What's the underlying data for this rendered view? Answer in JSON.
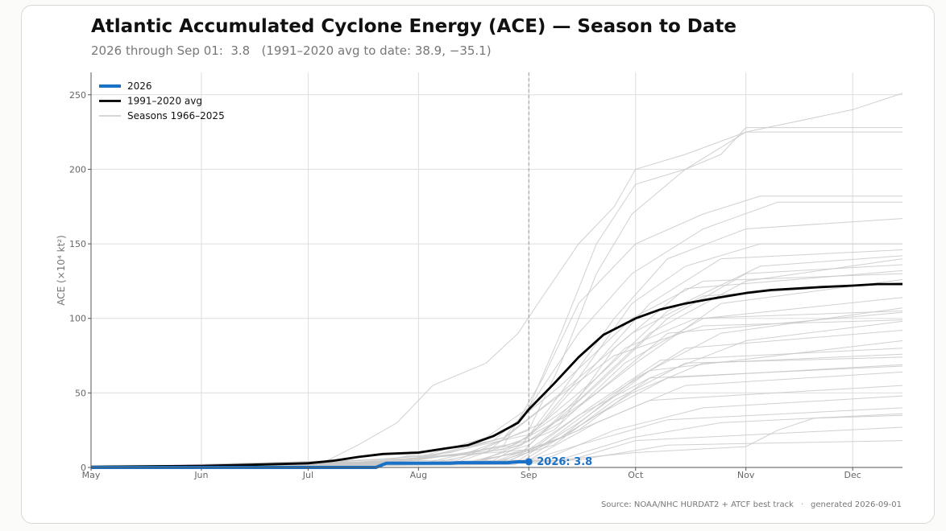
{
  "title": "Atlantic Accumulated Cyclone Energy (ACE) — Season to Date",
  "subtitle": "2026 through Sep 01:  3.8   (1991–2020 avg to date: 38.9, −35.1)",
  "footer": {
    "source": "Source: NOAA/NHC HURDAT2 + ATCF best track",
    "separator": "·",
    "generated": "generated 2026-09-01"
  },
  "colors": {
    "current": "#1a72c8",
    "average": "#000000",
    "history": "#c8c8c8",
    "grid": "#dddddd",
    "today": "#999999"
  },
  "chart_data": {
    "type": "line",
    "ylabel": "ACE (×10⁴ kt²)",
    "xlim": [
      "2026-05-01",
      "2026-12-15"
    ],
    "ylim": [
      0,
      265
    ],
    "x_ticks": [
      {
        "date": "2026-05-01",
        "label": "May"
      },
      {
        "date": "2026-06-01",
        "label": "Jun"
      },
      {
        "date": "2026-07-01",
        "label": "Jul"
      },
      {
        "date": "2026-08-01",
        "label": "Aug"
      },
      {
        "date": "2026-09-01",
        "label": "Sep"
      },
      {
        "date": "2026-10-01",
        "label": "Oct"
      },
      {
        "date": "2026-11-01",
        "label": "Nov"
      },
      {
        "date": "2026-12-01",
        "label": "Dec"
      }
    ],
    "y_ticks": [
      0,
      50,
      100,
      150,
      200,
      250
    ],
    "grid": true,
    "legend_position": "top-left",
    "today": "2026-09-01",
    "annotation": "2026: 3.8",
    "legend": [
      {
        "label": "2026",
        "key": "current"
      },
      {
        "label": "1991–2020 avg",
        "key": "average"
      },
      {
        "label": "Seasons 1966–2025",
        "key": "history"
      }
    ],
    "series_2026": {
      "name": "2026",
      "x": [
        "2026-05-01",
        "2026-07-20",
        "2026-07-23",
        "2026-08-10",
        "2026-08-12",
        "2026-08-26",
        "2026-08-29",
        "2026-09-01"
      ],
      "y": [
        0,
        0,
        2.8,
        2.8,
        3.2,
        3.2,
        3.8,
        3.8
      ]
    },
    "series_avg": {
      "name": "1991–2020 avg",
      "x": [
        "2026-05-01",
        "2026-06-01",
        "2026-06-15",
        "2026-07-01",
        "2026-07-08",
        "2026-07-15",
        "2026-07-22",
        "2026-08-01",
        "2026-08-08",
        "2026-08-15",
        "2026-08-22",
        "2026-08-29",
        "2026-09-01",
        "2026-09-08",
        "2026-09-15",
        "2026-09-22",
        "2026-10-01",
        "2026-10-08",
        "2026-10-15",
        "2026-10-22",
        "2026-11-01",
        "2026-11-08",
        "2026-11-15",
        "2026-11-22",
        "2026-12-01",
        "2026-12-08",
        "2026-12-15"
      ],
      "y": [
        0.5,
        1,
        1.8,
        2.8,
        4.5,
        7,
        9,
        10,
        12.5,
        15,
        21,
        30,
        38.9,
        56,
        74,
        89,
        100,
        106,
        110,
        113,
        117,
        119,
        120,
        121,
        122,
        123,
        123
      ]
    },
    "series_history": [
      {
        "x": [
          "2026-05-01",
          "2026-07-05",
          "2026-07-15",
          "2026-07-26",
          "2026-08-05",
          "2026-08-20",
          "2026-08-29",
          "2026-09-05",
          "2026-09-15",
          "2026-09-25",
          "2026-10-01",
          "2026-10-15",
          "2026-11-01",
          "2026-12-01",
          "2026-12-15"
        ],
        "y": [
          0,
          3,
          15,
          30,
          55,
          70,
          90,
          115,
          150,
          175,
          200,
          210,
          225,
          240,
          251
        ]
      },
      {
        "x": [
          "2026-05-01",
          "2026-07-20",
          "2026-08-10",
          "2026-08-25",
          "2026-09-01",
          "2026-09-10",
          "2026-09-20",
          "2026-10-01",
          "2026-10-15",
          "2026-10-25",
          "2026-11-01",
          "2026-12-15"
        ],
        "y": [
          0,
          5,
          10,
          20,
          40,
          90,
          150,
          190,
          200,
          210,
          228,
          228
        ]
      },
      {
        "x": [
          "2026-05-01",
          "2026-07-25",
          "2026-08-15",
          "2026-09-01",
          "2026-09-10",
          "2026-09-20",
          "2026-09-30",
          "2026-10-15",
          "2026-11-01",
          "2026-12-15"
        ],
        "y": [
          0,
          3,
          10,
          25,
          70,
          130,
          170,
          200,
          225,
          225
        ]
      },
      {
        "x": [
          "2026-05-01",
          "2026-08-01",
          "2026-08-25",
          "2026-09-05",
          "2026-09-15",
          "2026-10-01",
          "2026-10-20",
          "2026-11-05",
          "2026-12-15"
        ],
        "y": [
          0,
          2,
          15,
          60,
          110,
          150,
          170,
          182,
          182
        ]
      },
      {
        "x": [
          "2026-05-01",
          "2026-07-28",
          "2026-08-20",
          "2026-09-01",
          "2026-09-15",
          "2026-09-30",
          "2026-10-20",
          "2026-11-10",
          "2026-12-15"
        ],
        "y": [
          0,
          4,
          20,
          40,
          90,
          130,
          160,
          178,
          178
        ]
      },
      {
        "x": [
          "2026-05-01",
          "2026-08-05",
          "2026-08-30",
          "2026-09-10",
          "2026-09-25",
          "2026-10-10",
          "2026-11-01",
          "2026-12-15"
        ],
        "y": [
          0,
          3,
          15,
          50,
          100,
          140,
          160,
          167
        ]
      },
      {
        "x": [
          "2026-05-01",
          "2026-08-10",
          "2026-09-01",
          "2026-09-15",
          "2026-09-30",
          "2026-10-15",
          "2026-11-05",
          "2026-12-15"
        ],
        "y": [
          0,
          2,
          20,
          60,
          110,
          135,
          150,
          150
        ]
      },
      {
        "x": [
          "2026-05-01",
          "2026-08-12",
          "2026-09-05",
          "2026-09-20",
          "2026-10-05",
          "2026-10-25",
          "2026-12-15"
        ],
        "y": [
          0,
          5,
          30,
          70,
          110,
          140,
          146
        ]
      },
      {
        "x": [
          "2026-05-01",
          "2026-08-15",
          "2026-09-01",
          "2026-09-20",
          "2026-10-10",
          "2026-11-01",
          "2026-12-15"
        ],
        "y": [
          0,
          3,
          15,
          55,
          100,
          130,
          136
        ]
      },
      {
        "x": [
          "2026-05-01",
          "2026-08-20",
          "2026-09-10",
          "2026-09-25",
          "2026-10-15",
          "2026-12-15"
        ],
        "y": [
          0,
          2,
          30,
          80,
          120,
          132
        ]
      },
      {
        "x": [
          "2026-05-01",
          "2026-08-01",
          "2026-08-25",
          "2026-09-10",
          "2026-09-30",
          "2026-10-20",
          "2026-12-15"
        ],
        "y": [
          0,
          6,
          20,
          50,
          90,
          115,
          124
        ]
      },
      {
        "x": [
          "2026-05-01",
          "2026-08-18",
          "2026-09-08",
          "2026-09-28",
          "2026-10-20",
          "2026-12-15"
        ],
        "y": [
          0,
          4,
          25,
          70,
          100,
          114
        ]
      },
      {
        "x": [
          "2026-05-01",
          "2026-08-22",
          "2026-09-10",
          "2026-10-01",
          "2026-10-25",
          "2026-12-15"
        ],
        "y": [
          0,
          2,
          20,
          60,
          90,
          107
        ]
      },
      {
        "x": [
          "2026-05-01",
          "2026-08-25",
          "2026-09-15",
          "2026-10-05",
          "2026-11-01",
          "2026-12-15"
        ],
        "y": [
          0,
          3,
          25,
          60,
          85,
          98
        ]
      },
      {
        "x": [
          "2026-05-01",
          "2026-08-15",
          "2026-09-05",
          "2026-09-25",
          "2026-10-15",
          "2026-12-15"
        ],
        "y": [
          0,
          2,
          15,
          50,
          80,
          92
        ]
      },
      {
        "x": [
          "2026-05-01",
          "2026-08-28",
          "2026-09-15",
          "2026-10-05",
          "2026-12-15"
        ],
        "y": [
          0,
          3,
          30,
          65,
          85
        ]
      },
      {
        "x": [
          "2026-05-01",
          "2026-08-20",
          "2026-09-10",
          "2026-09-30",
          "2026-10-20",
          "2026-12-15"
        ],
        "y": [
          0,
          2,
          20,
          50,
          70,
          76
        ]
      },
      {
        "x": [
          "2026-05-01",
          "2026-08-30",
          "2026-09-20",
          "2026-10-10",
          "2026-12-15"
        ],
        "y": [
          0,
          4,
          35,
          60,
          69
        ]
      },
      {
        "x": [
          "2026-05-01",
          "2026-09-01",
          "2026-09-20",
          "2026-10-15",
          "2026-12-15"
        ],
        "y": [
          0,
          5,
          30,
          55,
          64
        ]
      },
      {
        "x": [
          "2026-05-01",
          "2026-08-25",
          "2026-09-15",
          "2026-10-05",
          "2026-12-15"
        ],
        "y": [
          0,
          3,
          25,
          45,
          55
        ]
      },
      {
        "x": [
          "2026-05-01",
          "2026-09-05",
          "2026-09-25",
          "2026-10-20",
          "2026-12-15"
        ],
        "y": [
          0,
          5,
          25,
          40,
          48
        ]
      },
      {
        "x": [
          "2026-05-01",
          "2026-08-28",
          "2026-09-15",
          "2026-10-10",
          "2026-12-15"
        ],
        "y": [
          0,
          2,
          15,
          32,
          40
        ]
      },
      {
        "x": [
          "2026-05-01",
          "2026-09-08",
          "2026-09-30",
          "2026-10-25",
          "2026-12-15"
        ],
        "y": [
          0,
          4,
          20,
          30,
          36
        ]
      },
      {
        "x": [
          "2026-05-01",
          "2026-09-10",
          "2026-10-01",
          "2026-12-15"
        ],
        "y": [
          0,
          3,
          18,
          27
        ]
      },
      {
        "x": [
          "2026-05-01",
          "2026-09-15",
          "2026-10-10",
          "2026-12-15"
        ],
        "y": [
          0,
          5,
          15,
          18
        ]
      },
      {
        "x": [
          "2026-05-01",
          "2026-09-05",
          "2026-10-01",
          "2026-11-01",
          "2026-11-10",
          "2026-11-20",
          "2026-12-15"
        ],
        "y": [
          0,
          4,
          10,
          14,
          25,
          33,
          35
        ]
      },
      {
        "x": [
          "2026-05-01",
          "2026-07-10",
          "2026-08-01",
          "2026-09-01",
          "2026-09-15",
          "2026-10-05",
          "2026-12-15"
        ],
        "y": [
          0,
          3,
          6,
          12,
          35,
          60,
          68
        ]
      },
      {
        "x": [
          "2026-05-01",
          "2026-07-15",
          "2026-08-10",
          "2026-09-01",
          "2026-09-20",
          "2026-10-10",
          "2026-12-15"
        ],
        "y": [
          0,
          2,
          8,
          18,
          50,
          90,
          104
        ]
      },
      {
        "x": [
          "2026-05-01",
          "2026-06-15",
          "2026-07-15",
          "2026-08-20",
          "2026-09-05",
          "2026-09-25",
          "2026-10-20",
          "2026-12-15"
        ],
        "y": [
          0,
          1,
          3,
          10,
          40,
          75,
          95,
          99
        ]
      },
      {
        "x": [
          "2026-05-01",
          "2026-06-20",
          "2026-07-20",
          "2026-08-25",
          "2026-09-12",
          "2026-10-01",
          "2026-10-25",
          "2026-12-15"
        ],
        "y": [
          0,
          2,
          4,
          12,
          35,
          70,
          110,
          126
        ]
      },
      {
        "x": [
          "2026-05-01",
          "2026-07-01",
          "2026-08-01",
          "2026-08-28",
          "2026-09-15",
          "2026-10-05",
          "2026-11-01",
          "2026-12-15"
        ],
        "y": [
          0,
          1,
          5,
          15,
          45,
          90,
          125,
          140
        ]
      },
      {
        "x": [
          "2026-05-01",
          "2026-07-05",
          "2026-08-05",
          "2026-09-01",
          "2026-09-20",
          "2026-10-10",
          "2026-11-05",
          "2026-12-15"
        ],
        "y": [
          0,
          3,
          8,
          22,
          60,
          105,
          135,
          142
        ]
      },
      {
        "x": [
          "2026-05-01",
          "2026-06-25",
          "2026-07-25",
          "2026-08-22",
          "2026-09-10",
          "2026-09-30",
          "2026-10-20",
          "2026-12-15"
        ],
        "y": [
          0,
          2,
          6,
          18,
          55,
          100,
          125,
          130
        ]
      },
      {
        "x": [
          "2026-05-01",
          "2026-08-10",
          "2026-08-30",
          "2026-09-12",
          "2026-09-28",
          "2026-10-18",
          "2026-12-15"
        ],
        "y": [
          0,
          2,
          10,
          40,
          80,
          100,
          105
        ]
      },
      {
        "x": [
          "2026-05-01",
          "2026-08-15",
          "2026-09-02",
          "2026-09-18",
          "2026-10-08",
          "2026-12-15"
        ],
        "y": [
          0,
          3,
          12,
          40,
          72,
          80
        ]
      },
      {
        "x": [
          "2026-05-01",
          "2026-08-20",
          "2026-09-08",
          "2026-09-25",
          "2026-10-15",
          "2026-12-15"
        ],
        "y": [
          0,
          2,
          15,
          45,
          70,
          74
        ]
      }
    ]
  }
}
